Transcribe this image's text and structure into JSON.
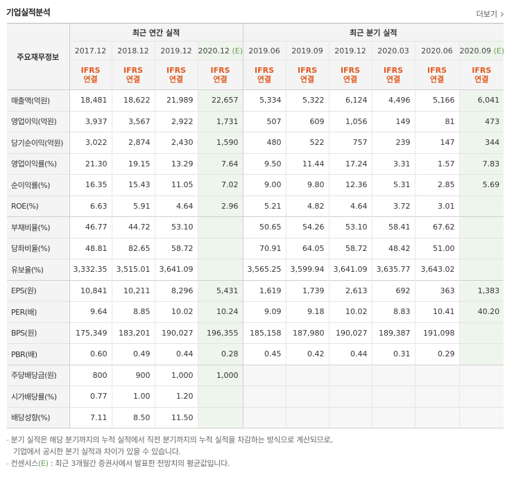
{
  "header": {
    "title": "기업실적분석",
    "more_label": "더보기"
  },
  "table": {
    "label_header": "주요재무정보",
    "annual_header": "최근 연간 실적",
    "quarter_header": "최근 분기 실적",
    "periods": [
      "2017.12",
      "2018.12",
      "2019.12",
      "2020.12",
      "2019.06",
      "2019.09",
      "2019.12",
      "2020.03",
      "2020.06",
      "2020.09"
    ],
    "estimate_marker": "(E)",
    "ifrs_top": "IFRS",
    "ifrs_bottom": "연결",
    "rows": [
      {
        "label": "매출액(억원)",
        "values": [
          "18,481",
          "18,622",
          "21,989",
          "22,657",
          "5,334",
          "5,322",
          "6,124",
          "4,496",
          "5,166",
          "6,041"
        ]
      },
      {
        "label": "영업이익(억원)",
        "values": [
          "3,937",
          "3,567",
          "2,922",
          "1,731",
          "507",
          "609",
          "1,056",
          "149",
          "81",
          "473"
        ]
      },
      {
        "label": "당기순이익(억원)",
        "values": [
          "3,022",
          "2,874",
          "2,430",
          "1,590",
          "480",
          "522",
          "757",
          "239",
          "147",
          "344"
        ]
      },
      {
        "label": "영업이익률(%)",
        "values": [
          "21.30",
          "19.15",
          "13.29",
          "7.64",
          "9.50",
          "11.44",
          "17.24",
          "3.31",
          "1.57",
          "7.83"
        ]
      },
      {
        "label": "순이익률(%)",
        "values": [
          "16.35",
          "15.43",
          "11.05",
          "7.02",
          "9.00",
          "9.80",
          "12.36",
          "5.31",
          "2.85",
          "5.69"
        ]
      },
      {
        "label": "ROE(%)",
        "values": [
          "6.63",
          "5.91",
          "4.64",
          "2.96",
          "5.21",
          "4.82",
          "4.64",
          "3.72",
          "3.01",
          ""
        ]
      },
      {
        "label": "부채비율(%)",
        "values": [
          "46.77",
          "44.72",
          "53.10",
          "",
          "50.65",
          "54.26",
          "53.10",
          "58.41",
          "67.62",
          ""
        ]
      },
      {
        "label": "당좌비율(%)",
        "values": [
          "48.81",
          "82.65",
          "58.72",
          "",
          "70.91",
          "64.05",
          "58.72",
          "48.42",
          "51.00",
          ""
        ]
      },
      {
        "label": "유보율(%)",
        "values": [
          "3,332.35",
          "3,515.01",
          "3,641.09",
          "",
          "3,565.25",
          "3,599.94",
          "3,641.09",
          "3,635.77",
          "3,643.02",
          ""
        ]
      },
      {
        "label": "EPS(원)",
        "values": [
          "10,841",
          "10,211",
          "8,296",
          "5,431",
          "1,619",
          "1,739",
          "2,613",
          "692",
          "363",
          "1,383"
        ]
      },
      {
        "label": "PER(배)",
        "values": [
          "9.64",
          "8.85",
          "10.02",
          "10.24",
          "9.09",
          "9.18",
          "10.02",
          "8.83",
          "10.41",
          "40.20"
        ]
      },
      {
        "label": "BPS(원)",
        "values": [
          "175,349",
          "183,201",
          "190,027",
          "196,355",
          "185,158",
          "187,980",
          "190,027",
          "189,387",
          "191,098",
          ""
        ]
      },
      {
        "label": "PBR(배)",
        "values": [
          "0.60",
          "0.49",
          "0.44",
          "0.28",
          "0.45",
          "0.42",
          "0.44",
          "0.31",
          "0.29",
          ""
        ]
      },
      {
        "label": "주당배당금(원)",
        "values": [
          "800",
          "900",
          "1,000",
          "1,000",
          "",
          "",
          "",
          "",
          "",
          ""
        ]
      },
      {
        "label": "시가배당률(%)",
        "values": [
          "0.77",
          "1.00",
          "1.20",
          "",
          "",
          "",
          "",
          "",
          "",
          ""
        ]
      },
      {
        "label": "배당성향(%)",
        "values": [
          "7.11",
          "8.50",
          "11.50",
          "",
          "",
          "",
          "",
          "",
          "",
          ""
        ]
      }
    ]
  },
  "notes": {
    "line1": "분기 실적은 해당 분기까지의 누적 실적에서 직전 분기까지의 누적 실적을 차감하는 방식으로 계산되므로,",
    "line2": "기업에서 공시한 분기 실적과 차이가 있을 수 있습니다.",
    "line3_prefix": "컨센서스",
    "line3_mark": "(E)",
    "line3_rest": ": 최근 3개월간 증권사에서 발표한 전망치의 평균값입니다."
  },
  "colors": {
    "ifrs": "#e05a1f",
    "estimate_bg": "#eef5ec",
    "header_bg": "#f4f4f4",
    "estimate_text": "#6a9c55"
  }
}
